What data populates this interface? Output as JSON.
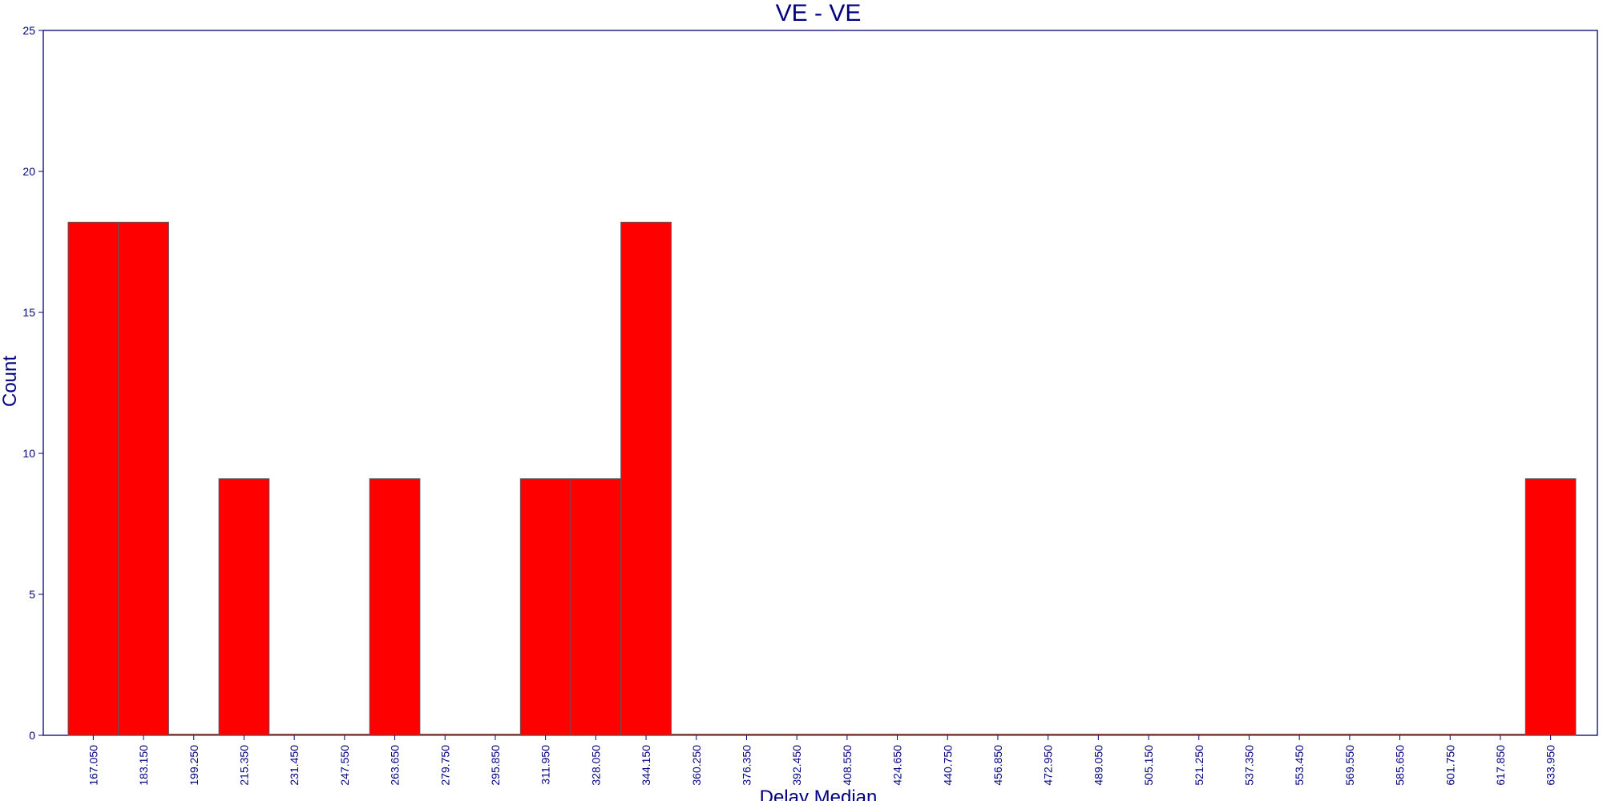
{
  "chart_data": {
    "type": "bar",
    "title": "VE - VE",
    "xlabel": "Delay Median",
    "ylabel": "Count",
    "ylim": [
      0,
      25
    ],
    "yticks": [
      0,
      5,
      10,
      15,
      20,
      25
    ],
    "categories": [
      "167.050",
      "183.150",
      "199.250",
      "215.350",
      "231.450",
      "247.550",
      "263.650",
      "279.750",
      "295.850",
      "311.950",
      "328.050",
      "344.150",
      "360.250",
      "376.350",
      "392.450",
      "408.550",
      "424.650",
      "440.750",
      "456.850",
      "472.950",
      "489.050",
      "505.150",
      "521.250",
      "537.350",
      "553.450",
      "569.550",
      "585.650",
      "601.750",
      "617.850",
      "633.950"
    ],
    "values": [
      18.2,
      18.2,
      0,
      9.1,
      0,
      0,
      9.1,
      0,
      0,
      9.1,
      9.1,
      18.2,
      0,
      0,
      0,
      0,
      0,
      0,
      0,
      0,
      0,
      0,
      0,
      0,
      0,
      0,
      0,
      0,
      0,
      9.1
    ],
    "grid": false,
    "colors": {
      "bar": "#ff0000",
      "axis": "#000080",
      "bar_edge": "#5a5a5a"
    }
  }
}
